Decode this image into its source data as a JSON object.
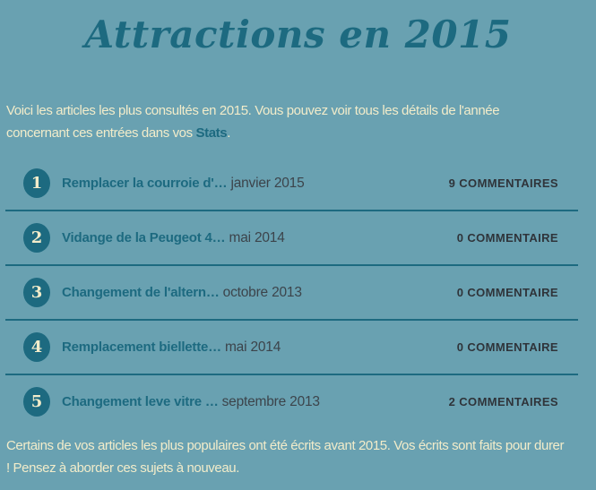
{
  "page": {
    "title": "Attractions en 2015",
    "colors": {
      "background": "#69a1b1",
      "accent_teal": "#1d6a80",
      "cream_text": "#f2ecca",
      "date_text": "#3c444b",
      "comment_text": "#2f343a"
    }
  },
  "intro": {
    "text_before_link": "Voici les articles les plus consultés en 2015. Vous pouvez voir tous les détails de l'année concernant ces entrées dans vos ",
    "link_label": "Stats",
    "text_after_link": "."
  },
  "posts": [
    {
      "rank": "1",
      "title": "Remplacer la courroie d'…",
      "date": "janvier 2015",
      "comments": "9 COMMENTAIRES"
    },
    {
      "rank": "2",
      "title": "Vidange de la Peugeot 4…",
      "date": "mai 2014",
      "comments": "0 COMMENTAIRE"
    },
    {
      "rank": "3",
      "title": "Changement de l'altern…",
      "date": "octobre 2013",
      "comments": "0 COMMENTAIRE"
    },
    {
      "rank": "4",
      "title": "Remplacement biellette…",
      "date": "mai 2014",
      "comments": "0 COMMENTAIRE"
    },
    {
      "rank": "5",
      "title": "Changement leve vitre …",
      "date": "septembre 2013",
      "comments": "2 COMMENTAIRES"
    }
  ],
  "footer": {
    "text": "Certains de vos articles les plus populaires ont été écrits avant 2015. Vos écrits sont faits pour durer ! Pensez à aborder ces sujets à nouveau."
  }
}
